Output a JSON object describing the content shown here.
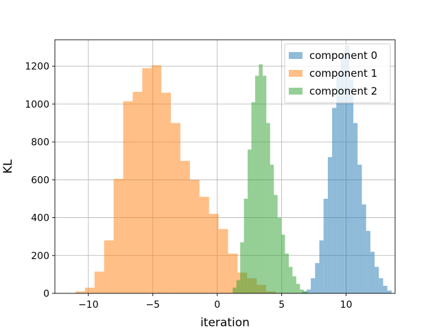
{
  "chart_data": {
    "type": "histogram",
    "xlabel": "iteration",
    "ylabel": "KL",
    "xlim": [
      -12.6,
      13.8
    ],
    "ylim": [
      0,
      1340
    ],
    "xticks": [
      -10,
      -5,
      0,
      5,
      10
    ],
    "xtick_labels": [
      "−10",
      "−5",
      "0",
      "5",
      "10"
    ],
    "yticks": [
      0,
      200,
      400,
      600,
      800,
      1000,
      1200
    ],
    "ytick_labels": [
      "0",
      "200",
      "400",
      "600",
      "800",
      "1000",
      "1200"
    ],
    "grid": true,
    "legend_position": "top-right",
    "series": [
      {
        "name": "component 0",
        "color": "#1f77b4",
        "opacity": 0.5,
        "bin_start": 6.6,
        "bin_width": 0.33,
        "counts": [
          10,
          20,
          80,
          160,
          280,
          500,
          720,
          980,
          1150,
          1270,
          1310,
          1130,
          900,
          680,
          470,
          330,
          220,
          140,
          80,
          40,
          15
        ]
      },
      {
        "name": "component 1",
        "color": "#ff7f0e",
        "opacity": 0.5,
        "bin_start": -11.0,
        "bin_width": 0.74,
        "counts": [
          10,
          30,
          115,
          280,
          605,
          1015,
          1065,
          1190,
          1205,
          1060,
          900,
          700,
          600,
          510,
          420,
          340,
          210,
          110,
          80,
          45,
          10
        ]
      },
      {
        "name": "component 2",
        "color": "#2ca02c",
        "opacity": 0.5,
        "bin_start": 1.2,
        "bin_width": 0.29,
        "counts": [
          30,
          70,
          270,
          500,
          760,
          1010,
          1150,
          1210,
          1150,
          900,
          680,
          520,
          400,
          310,
          210,
          140,
          90,
          50,
          20,
          10
        ]
      }
    ]
  }
}
